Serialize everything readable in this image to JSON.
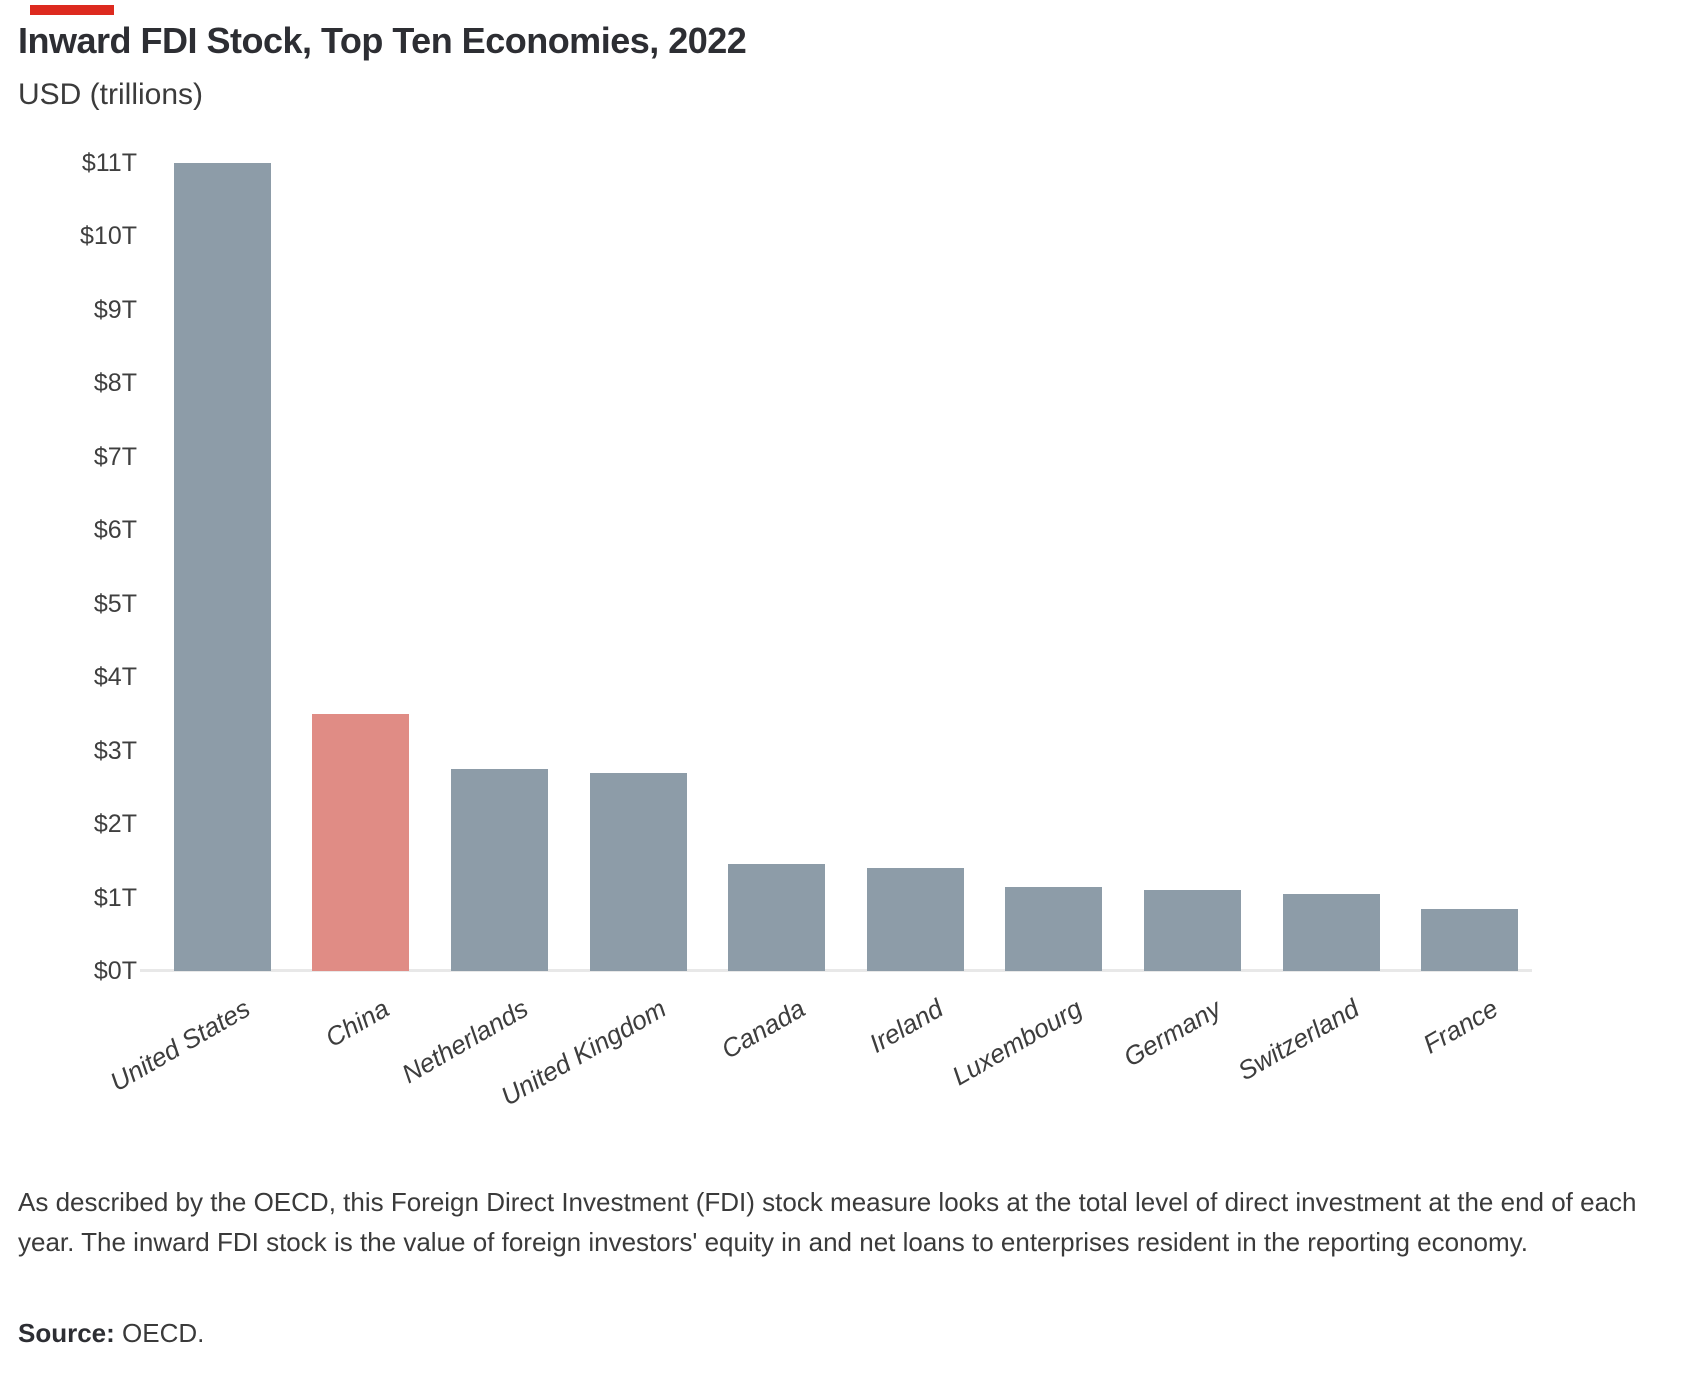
{
  "header": {
    "title": "Inward FDI Stock, Top Ten Economies, 2022",
    "subtitle": "USD (trillions)"
  },
  "accent": {
    "color": "#dd2a1f"
  },
  "chart_data": {
    "type": "bar",
    "title": "Inward FDI Stock, Top Ten Economies, 2022",
    "subtitle": "USD (trillions)",
    "xlabel": "",
    "ylabel": "USD (trillions)",
    "categories": [
      "United States",
      "China",
      "Netherlands",
      "United Kingdom",
      "Canada",
      "Ireland",
      "Luxembourg",
      "Germany",
      "Switzerland",
      "France"
    ],
    "values": [
      11.0,
      3.5,
      2.75,
      2.7,
      1.45,
      1.4,
      1.15,
      1.1,
      1.05,
      0.85
    ],
    "highlight_category": "China",
    "bar_color": "#8d9ca8",
    "highlight_color": "#e08c85",
    "ylim": [
      0,
      11
    ],
    "ytick_step": 1,
    "yticks": [
      "$0T",
      "$1T",
      "$2T",
      "$3T",
      "$4T",
      "$5T",
      "$6T",
      "$7T",
      "$8T",
      "$9T",
      "$10T",
      "$11T"
    ],
    "grid": false,
    "legend": false,
    "baseline_color": "#e8e8e8"
  },
  "footer": {
    "note": "As described by the OECD, this Foreign Direct Investment (FDI) stock measure looks at the total level of direct investment at the end of each year. The inward FDI stock is the value of foreign investors' equity in and net loans to enterprises resident in the reporting economy.",
    "source_label": "Source:",
    "source_text": " OECD."
  }
}
